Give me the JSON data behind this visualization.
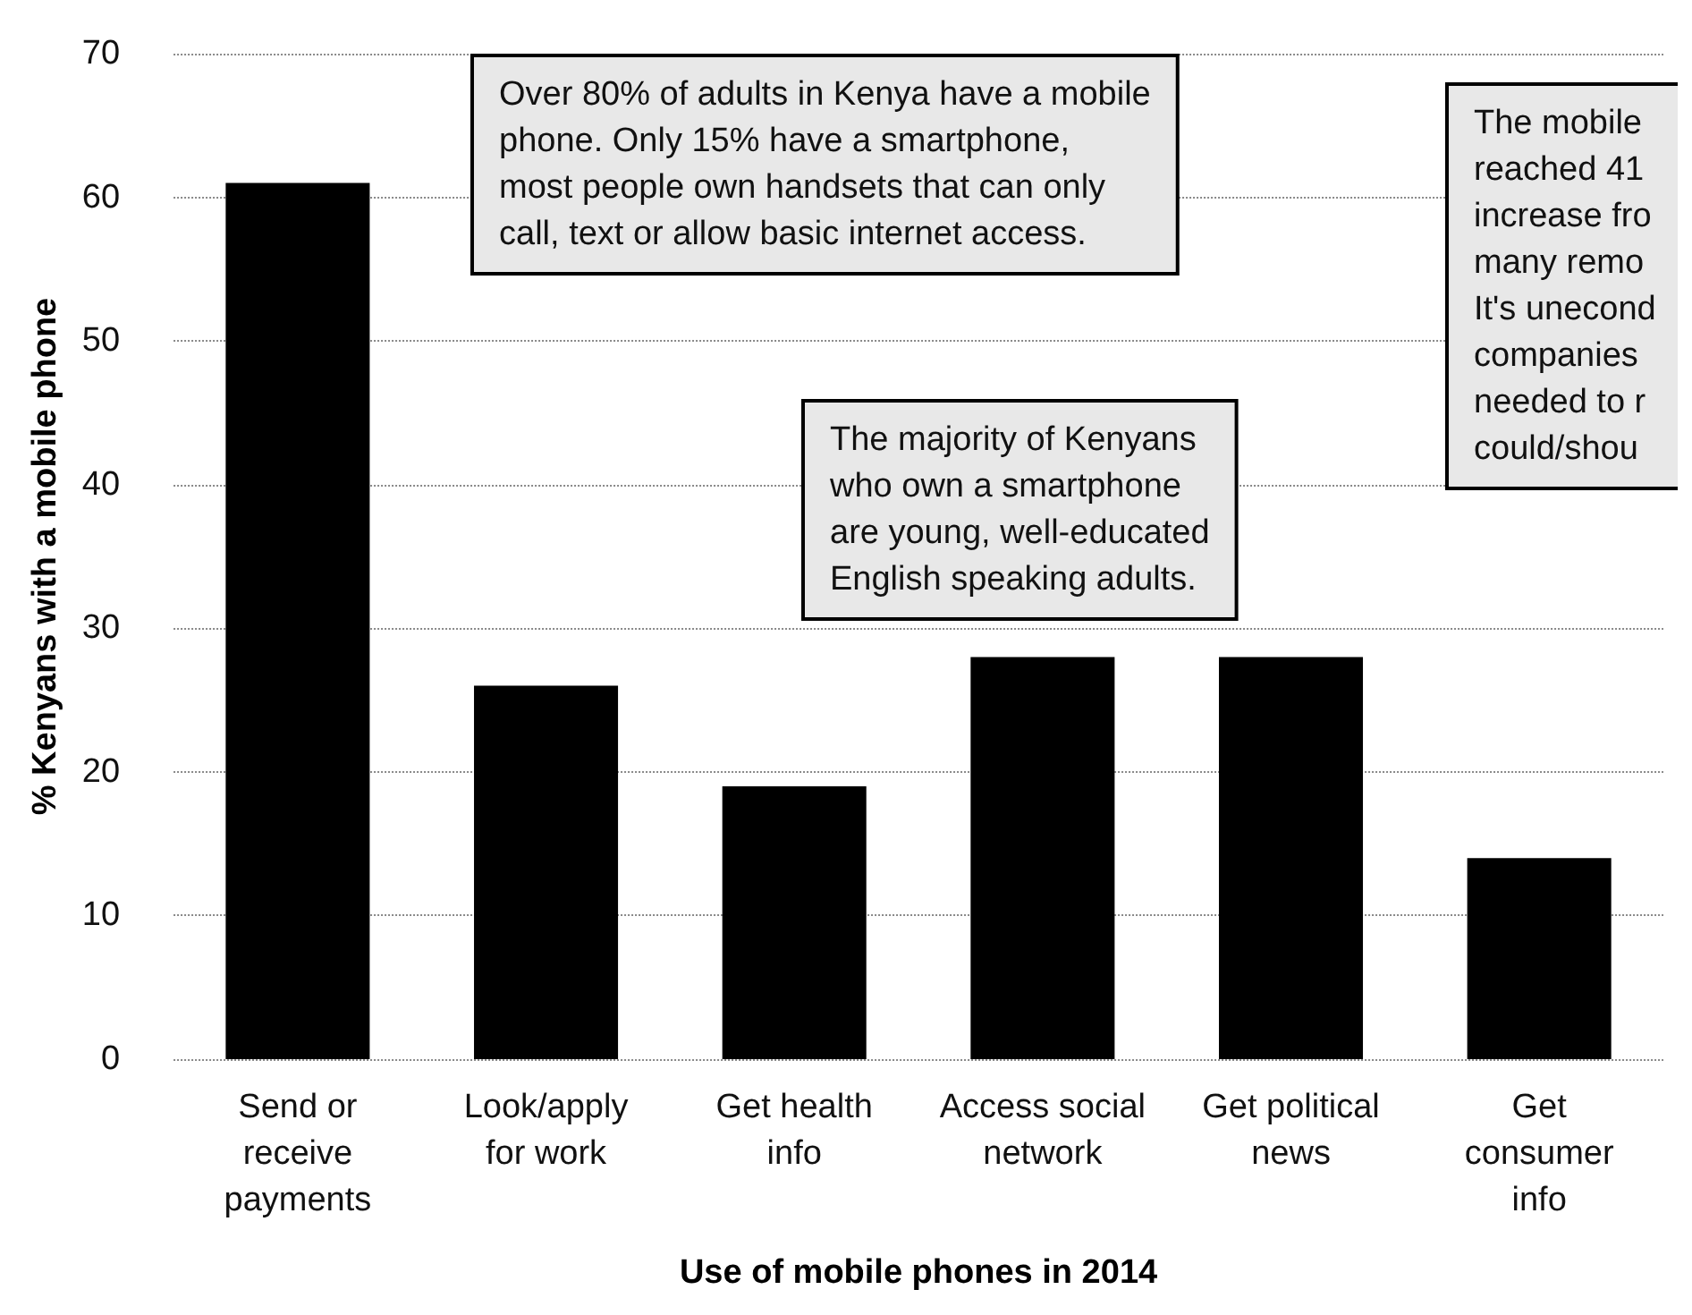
{
  "chart_data": {
    "type": "bar",
    "xlabel": "Use of mobile phones in 2014",
    "ylabel": "% Kenyans with a mobile phone",
    "categories": [
      "Send or\nreceive\npayments",
      "Look/apply\nfor work",
      "Get health\ninfo",
      "Access social\nnetwork",
      "Get political\nnews",
      "Get\nconsumer\ninfo"
    ],
    "values": [
      61,
      26,
      19,
      28,
      28,
      14
    ],
    "color": "#000000",
    "ylim": [
      0,
      70
    ],
    "yticks": [
      0,
      10,
      20,
      30,
      40,
      50,
      60,
      70
    ],
    "grid": "y",
    "annotations": [
      "Over 80% of adults in Kenya have a mobile\nphone. Only 15% have a smartphone,\nmost people own handsets that can only\ncall, text or allow basic internet access.",
      "The majority of Kenyans\nwho own a smartphone\nare young, well-educated\nEnglish speaking adults.",
      "The mobile\nreached 41\nincrease fro\nmany remo\nIt's unecond\ncompanies\nneeded to r\ncould/shou"
    ]
  }
}
